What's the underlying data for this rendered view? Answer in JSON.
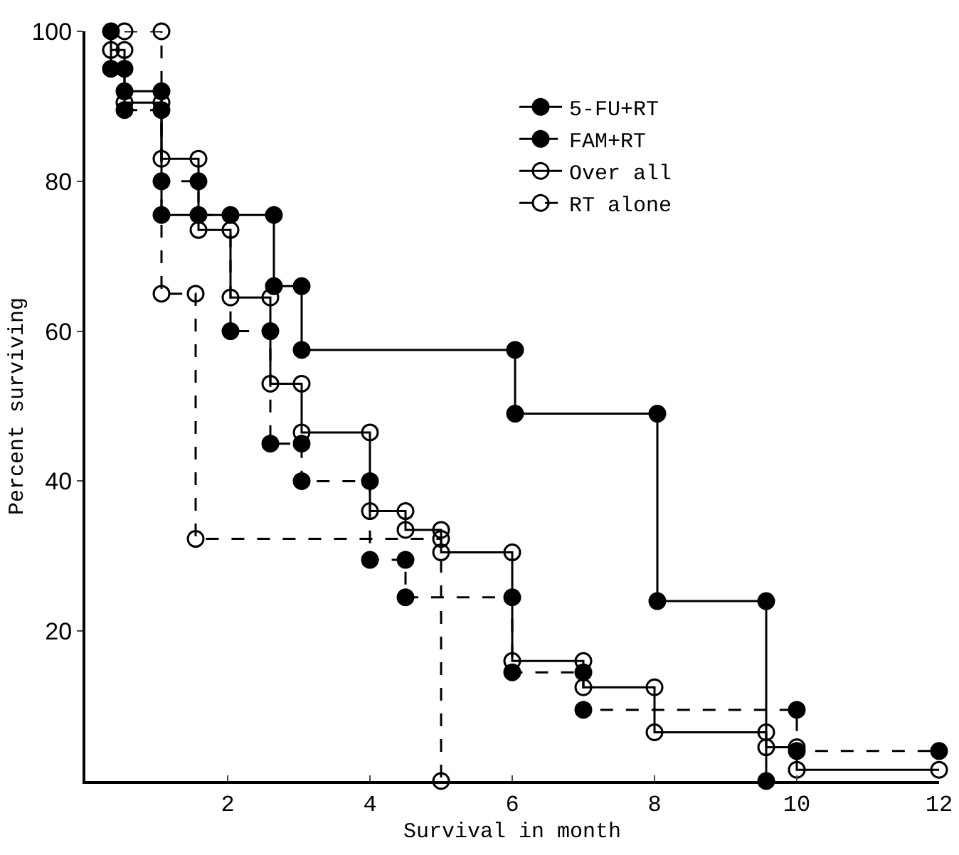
{
  "chart_data": {
    "type": "step",
    "xlabel": "Survival in month",
    "ylabel": "Percent surviving",
    "xlim": [
      0,
      12
    ],
    "xticks": [
      2,
      4,
      6,
      8,
      10,
      12
    ],
    "ylim": [
      0,
      100
    ],
    "yticks": [
      20,
      40,
      60,
      80,
      100
    ],
    "grid": false,
    "legend": "top",
    "series": [
      {
        "name": "5-FU+RT",
        "color": "#000000",
        "marker": "circle",
        "line_style": "solid",
        "x": [
          0.36,
          0.36,
          0.55,
          0.55,
          1.07,
          1.07,
          2.65,
          2.65,
          3.04,
          3.04,
          6.04,
          6.04,
          8.04,
          8.04,
          9.57,
          9.57
        ],
        "values": [
          100,
          95,
          95,
          92,
          92,
          75.5,
          75.5,
          66,
          66,
          57.5,
          57.5,
          49,
          49,
          24,
          24,
          0
        ]
      },
      {
        "name": "FAM+RT",
        "color": "#000000",
        "marker": "circle",
        "line_style": "dashed",
        "x": [
          0.55,
          1.07,
          1.07,
          1.59,
          1.59,
          2.04,
          2.04,
          2.6,
          2.6,
          3.04,
          3.04,
          4.0,
          4.0,
          4.5,
          4.5,
          6.0,
          6.0,
          7.0,
          7.0,
          10.0,
          10.0,
          12.0
        ],
        "values": [
          89.5,
          89.5,
          80,
          80,
          75.5,
          75.5,
          60,
          60,
          45,
          45,
          40,
          40,
          29.5,
          29.5,
          24.5,
          24.5,
          14.5,
          14.5,
          9.5,
          9.5,
          4,
          4
        ]
      },
      {
        "name": "Over all",
        "color": "#000000",
        "marker": "circle-open",
        "line_style": "solid",
        "x": [
          0.36,
          0.55,
          0.55,
          1.07,
          1.07,
          1.59,
          1.59,
          2.04,
          2.04,
          2.6,
          2.6,
          3.04,
          3.04,
          4.0,
          4.0,
          4.5,
          4.5,
          5.0,
          5.0,
          6.0,
          6.0,
          7.0,
          7.0,
          8.0,
          8.0,
          9.57,
          9.57,
          10.0,
          10.0,
          12.0
        ],
        "values": [
          97.5,
          97.5,
          90.5,
          90.5,
          83,
          83,
          73.5,
          73.5,
          64.5,
          64.5,
          53,
          53,
          46.5,
          46.5,
          36,
          36,
          33.5,
          33.5,
          30.5,
          30.5,
          16,
          16,
          12.5,
          12.5,
          6.5,
          6.5,
          4.5,
          4.5,
          1.5,
          1.5
        ]
      },
      {
        "name": "RT alone",
        "color": "#000000",
        "marker": "circle-open",
        "line_style": "dashed",
        "x": [
          0.55,
          1.07,
          1.07,
          1.55,
          1.55,
          5.0,
          5.0
        ],
        "values": [
          100,
          100,
          65,
          65,
          32.3,
          32.3,
          0
        ]
      }
    ]
  }
}
